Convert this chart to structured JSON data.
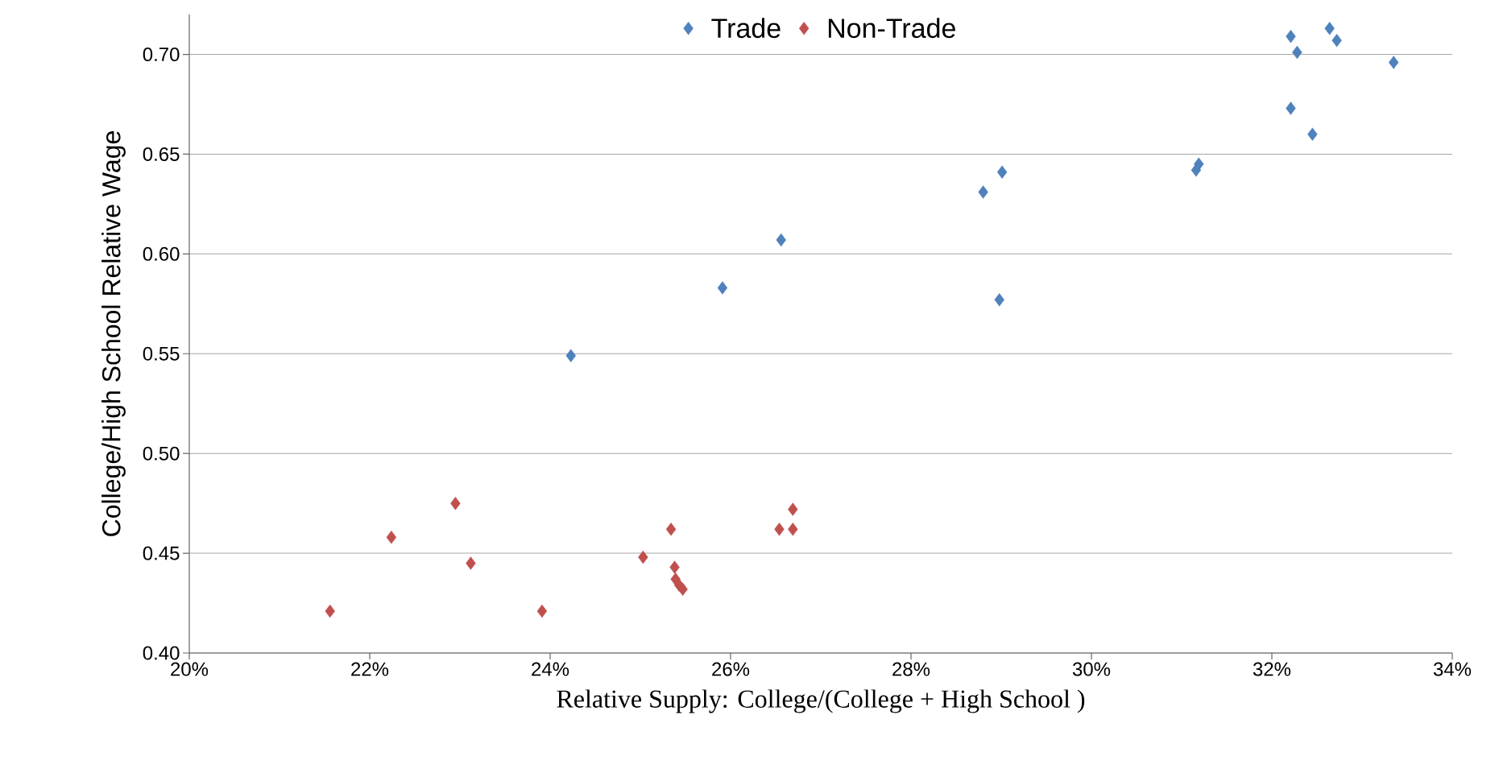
{
  "chart_data": {
    "type": "scatter",
    "xlabel": "Relative Supply: College/(College + High School )",
    "ylabel": "College/High School Relative Wage",
    "xlim": [
      20,
      34
    ],
    "ylim": [
      0.4,
      0.72
    ],
    "xticks": [
      {
        "value": 20,
        "label": "20%"
      },
      {
        "value": 22,
        "label": "22%"
      },
      {
        "value": 24,
        "label": "24%"
      },
      {
        "value": 26,
        "label": "26%"
      },
      {
        "value": 28,
        "label": "28%"
      },
      {
        "value": 30,
        "label": "30%"
      },
      {
        "value": 32,
        "label": "32%"
      },
      {
        "value": 34,
        "label": "34%"
      }
    ],
    "yticks": [
      {
        "value": 0.4,
        "label": "0.40"
      },
      {
        "value": 0.45,
        "label": "0.45"
      },
      {
        "value": 0.5,
        "label": "0.50"
      },
      {
        "value": 0.55,
        "label": "0.55"
      },
      {
        "value": 0.6,
        "label": "0.60"
      },
      {
        "value": 0.65,
        "label": "0.65"
      },
      {
        "value": 0.7,
        "label": "0.70"
      }
    ],
    "grid": "y",
    "legend": "top",
    "marker": "diamond",
    "series": [
      {
        "name": "Trade",
        "color": "#4f81bd",
        "x": [
          24.23,
          25.91,
          26.56,
          28.8,
          29.01,
          28.98,
          31.16,
          31.19,
          32.21,
          32.28,
          32.21,
          32.45,
          32.64,
          32.72,
          33.35
        ],
        "values": [
          0.549,
          0.583,
          0.607,
          0.631,
          0.641,
          0.577,
          0.642,
          0.645,
          0.709,
          0.701,
          0.673,
          0.66,
          0.713,
          0.707,
          0.696
        ]
      },
      {
        "name": "Non-Trade",
        "color": "#c0504d",
        "x": [
          21.56,
          22.24,
          22.95,
          23.12,
          23.91,
          25.03,
          25.34,
          25.38,
          25.39,
          25.43,
          25.47,
          26.54,
          26.69,
          26.69
        ],
        "values": [
          0.421,
          0.458,
          0.475,
          0.445,
          0.421,
          0.448,
          0.462,
          0.443,
          0.437,
          0.434,
          0.432,
          0.462,
          0.472,
          0.462
        ]
      }
    ]
  }
}
